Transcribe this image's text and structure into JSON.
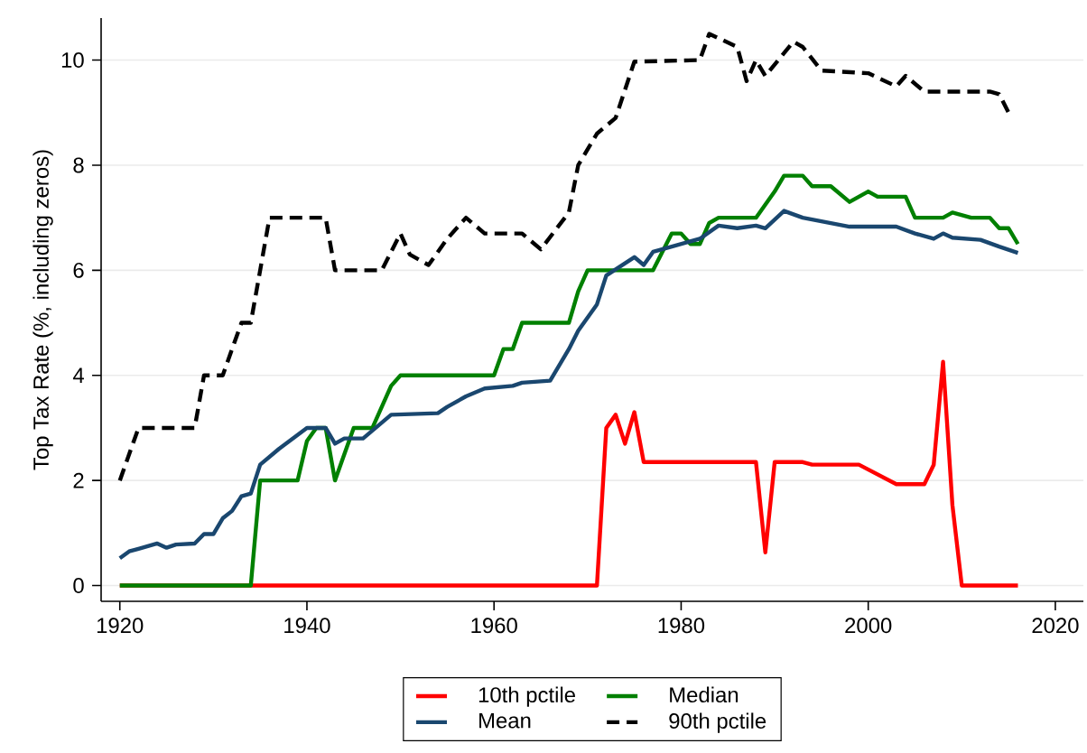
{
  "chart_data": {
    "type": "line",
    "ylabel": "Top Tax Rate (%, including zeros)",
    "xlim": [
      1918,
      2023
    ],
    "ylim": [
      -0.3,
      10.8
    ],
    "xticks": [
      1920,
      1940,
      1960,
      1980,
      2000,
      2020
    ],
    "yticks": [
      0,
      2,
      4,
      6,
      8,
      10
    ],
    "grid": "y",
    "legend": "bottom",
    "series": [
      {
        "name": "10th pctile",
        "color": "#ff0000",
        "x": [
          1920,
          1971,
          1972,
          1973,
          1974,
          1975,
          1976,
          1988,
          1989,
          1990,
          1993,
          1994,
          1999,
          2003,
          2006,
          2007,
          2008,
          2009,
          2010,
          2016
        ],
        "values": [
          0,
          0,
          3.0,
          3.25,
          2.7,
          3.3,
          2.35,
          2.35,
          0.63,
          2.35,
          2.35,
          2.3,
          2.3,
          1.93,
          1.93,
          2.3,
          4.26,
          1.53,
          0,
          0
        ]
      },
      {
        "name": "Median",
        "color": "#008000",
        "x": [
          1920,
          1934,
          1935,
          1939,
          1940,
          1941,
          1942,
          1943,
          1945,
          1947,
          1949,
          1950,
          1960,
          1961,
          1962,
          1963,
          1968,
          1969,
          1970,
          1977,
          1979,
          1980,
          1981,
          1982,
          1983,
          1984,
          1988,
          1990,
          1991,
          1993,
          1994,
          1996,
          1998,
          2000,
          2001,
          2004,
          2005,
          2008,
          2009,
          2011,
          2013,
          2014,
          2015,
          2016
        ],
        "values": [
          0,
          0,
          2.0,
          2.0,
          2.75,
          3.0,
          3.0,
          2.0,
          3.0,
          3.0,
          3.8,
          4.0,
          4.0,
          4.5,
          4.5,
          5.0,
          5.0,
          5.6,
          6.0,
          6.0,
          6.7,
          6.7,
          6.5,
          6.5,
          6.9,
          7.0,
          7.0,
          7.5,
          7.8,
          7.8,
          7.6,
          7.6,
          7.3,
          7.5,
          7.4,
          7.4,
          7.0,
          7.0,
          7.1,
          7.0,
          7.0,
          6.8,
          6.8,
          6.5
        ]
      },
      {
        "name": "Mean",
        "color": "#1a476f",
        "x": [
          1920,
          1921,
          1922,
          1924,
          1925,
          1926,
          1928,
          1929,
          1930,
          1931,
          1932,
          1933,
          1934,
          1935,
          1937,
          1940,
          1942,
          1943,
          1944,
          1946,
          1949,
          1954,
          1955,
          1957,
          1959,
          1962,
          1963,
          1966,
          1968,
          1969,
          1971,
          1972,
          1975,
          1976,
          1977,
          1979,
          1982,
          1984,
          1986,
          1988,
          1989,
          1991,
          1993,
          1998,
          2003,
          2005,
          2007,
          2008,
          2009,
          2012,
          2014,
          2016
        ],
        "values": [
          0.52,
          0.65,
          0.7,
          0.8,
          0.72,
          0.78,
          0.8,
          0.98,
          0.98,
          1.28,
          1.42,
          1.7,
          1.75,
          2.3,
          2.6,
          3.0,
          3.0,
          2.7,
          2.8,
          2.8,
          3.25,
          3.28,
          3.4,
          3.6,
          3.75,
          3.8,
          3.86,
          3.9,
          4.5,
          4.85,
          5.35,
          5.9,
          6.25,
          6.1,
          6.35,
          6.45,
          6.6,
          6.85,
          6.8,
          6.85,
          6.8,
          7.13,
          7.0,
          6.83,
          6.83,
          6.7,
          6.6,
          6.7,
          6.62,
          6.58,
          6.45,
          6.33
        ]
      },
      {
        "name": "90th pctile",
        "color": "#000000",
        "line_style": "dashed",
        "x": [
          1920,
          1922,
          1928,
          1929,
          1931,
          1933,
          1934,
          1936,
          1942,
          1943,
          1948,
          1950,
          1951,
          1953,
          1955,
          1957,
          1959,
          1963,
          1965,
          1968,
          1969,
          1971,
          1973,
          1975,
          1982,
          1983,
          1986,
          1987,
          1988,
          1989,
          1992,
          1993,
          1995,
          2000,
          2003,
          2004,
          2006,
          2013,
          2014,
          2015
        ],
        "values": [
          2.0,
          3.0,
          3.0,
          4.0,
          4.0,
          5.0,
          5.0,
          7.0,
          7.0,
          6.0,
          6.0,
          6.7,
          6.3,
          6.1,
          6.6,
          7.0,
          6.7,
          6.7,
          6.4,
          7.1,
          8.0,
          8.6,
          8.9,
          9.97,
          10.0,
          10.5,
          10.25,
          9.6,
          10.0,
          9.7,
          10.35,
          10.25,
          9.8,
          9.75,
          9.5,
          9.7,
          9.4,
          9.4,
          9.35,
          9.0
        ]
      }
    ]
  }
}
